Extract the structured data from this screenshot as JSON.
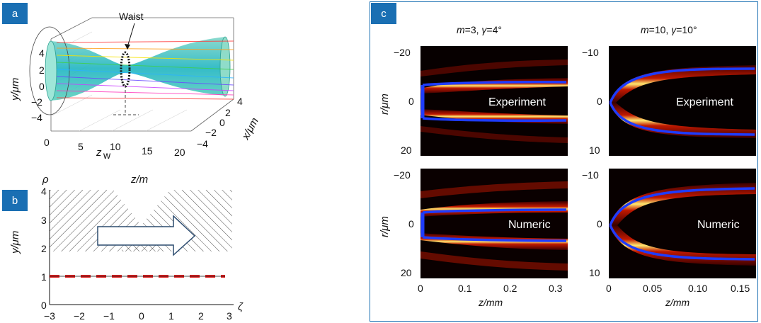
{
  "panels": {
    "a": "a",
    "b": "b",
    "c": "c"
  },
  "panel_a": {
    "annotation": "Waist",
    "ylabel": "y/μm",
    "xlabel_depth": "x/μm",
    "zw_label": "z",
    "zw_sub": "w",
    "y_ticks": [
      "4",
      "2",
      "0",
      "−2",
      "−4"
    ],
    "z_ticks": [
      "0",
      "5",
      "10",
      "15",
      "20"
    ],
    "x_ticks": [
      "4",
      "2",
      "0",
      "−2",
      "−4"
    ]
  },
  "panel_b": {
    "rho_label": "ρ",
    "zm_label": "z/m",
    "ylabel": "y/μm",
    "zeta_label": "ζ",
    "y_ticks": [
      "4",
      "3",
      "2",
      "1",
      "0"
    ],
    "x_ticks": [
      "−3",
      "−2",
      "−1",
      "0",
      "1",
      "2",
      "3"
    ]
  },
  "panel_c": {
    "col_titles": [
      {
        "m": "m",
        "m_val": "=3, ",
        "g": "γ",
        "g_val": "=4°"
      },
      {
        "m": "m",
        "m_val": "=10, ",
        "g": "γ",
        "g_val": "=10°"
      }
    ],
    "row_labels": [
      "Experiment",
      "Numeric"
    ],
    "ylabel": "r/μm",
    "left_y_ticks": [
      "−20",
      "0",
      "20"
    ],
    "right_y_ticks": [
      "−10",
      "0",
      "10"
    ],
    "left_x_ticks": [
      "0",
      "0.1",
      "0.2",
      "0.3"
    ],
    "right_x_ticks": [
      "0",
      "0.05",
      "0.10",
      "0.15"
    ],
    "xlabel": "z/mm"
  },
  "colors": {
    "tag_blue": "#1a6fb3",
    "trajectory": "#1e3cff",
    "beam_edge": "#e8e000",
    "dash_red": "#e02020"
  }
}
